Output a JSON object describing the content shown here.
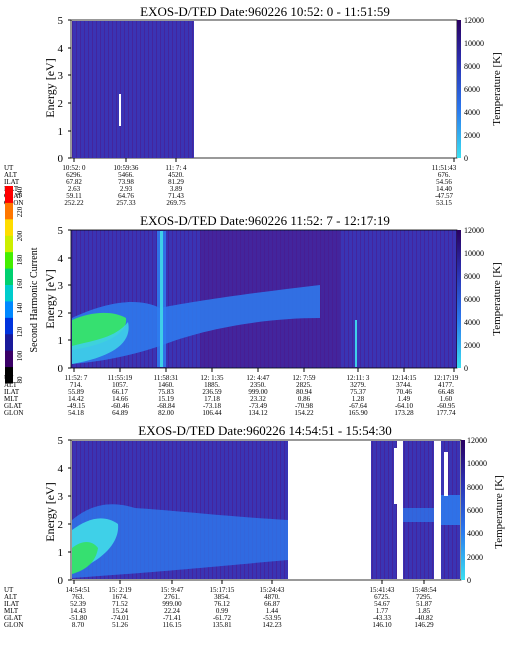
{
  "chart_data": [
    {
      "type": "heatmap",
      "title": "EXOS-D/TED   Date:960226  10:52: 0 - 11:51:59",
      "ylabel": "Energy [eV]",
      "ylim": [
        0,
        5
      ],
      "yticks": [
        "0",
        "1",
        "2",
        "3",
        "4",
        "5"
      ],
      "row_labels": [
        "UT",
        "ALT",
        "ILAT",
        "MLT",
        "GLAT",
        "GLON"
      ],
      "time_range": [
        "10:52: 0",
        "11:51:59"
      ],
      "ticks": [
        {
          "ut": "10:52: 0",
          "values": [
            "6296.",
            "67.82",
            "2.63",
            "59.11",
            "252.22"
          ]
        },
        {
          "ut": "10:59:36",
          "values": [
            "5466.",
            "73.98",
            "2.93",
            "64.76",
            "257.33"
          ]
        },
        {
          "ut": "11: 7: 4",
          "values": [
            "4520.",
            "81.29",
            "3.89",
            "71.43",
            "269.75"
          ]
        },
        {
          "ut": "11:51:43",
          "values": [
            "676.",
            "54.56",
            "14.40",
            "-47.57",
            "53.15"
          ]
        }
      ],
      "colorbar": {
        "label": "Temperature [K]",
        "range": [
          0,
          12000
        ],
        "ticks": [
          "0",
          "2000",
          "4000",
          "6000",
          "8000",
          "10000",
          "12000"
        ]
      }
    },
    {
      "type": "heatmap",
      "title": "EXOS-D/TED   Date:960226  11:52: 7 - 12:17:19",
      "ylabel": "Energy [eV]",
      "ylim": [
        0,
        5
      ],
      "yticks": [
        "0",
        "1",
        "2",
        "3",
        "4",
        "5"
      ],
      "row_labels": [
        "UT",
        "ALT",
        "ILAT",
        "MLT",
        "GLAT",
        "GLON"
      ],
      "time_range": [
        "11:52: 7",
        "12:17:19"
      ],
      "ticks": [
        {
          "ut": "11:52: 7",
          "values": [
            "714.",
            "55.89",
            "14.42",
            "-49.15",
            "54.18"
          ]
        },
        {
          "ut": "11:55:19",
          "values": [
            "1057.",
            "66.17",
            "14.66",
            "-60.46",
            "64.89"
          ]
        },
        {
          "ut": "11:58:31",
          "values": [
            "1460.",
            "75.83",
            "15.19",
            "-68.84",
            "82.00"
          ]
        },
        {
          "ut": "12: 1:35",
          "values": [
            "1885.",
            "236.59",
            "17.18",
            "-73.18",
            "106.44"
          ]
        },
        {
          "ut": "12: 4:47",
          "values": [
            "2350.",
            "999.00",
            "23.32",
            "-73.49",
            "134.12"
          ]
        },
        {
          "ut": "12: 7:59",
          "values": [
            "2825.",
            "80.94",
            "0.86",
            "-70.98",
            "154.22"
          ]
        },
        {
          "ut": "12:11: 3",
          "values": [
            "3279.",
            "75.37",
            "1.28",
            "-67.64",
            "165.90"
          ]
        },
        {
          "ut": "12:14:15",
          "values": [
            "3744.",
            "70.46",
            "1.49",
            "-64.10",
            "173.28"
          ]
        },
        {
          "ut": "12:17:19",
          "values": [
            "4177.",
            "66.48",
            "1.60",
            "-60.95",
            "177.74"
          ]
        }
      ],
      "colorbar": {
        "label": "Temperature [K]",
        "range": [
          0,
          12000
        ],
        "ticks": [
          "0",
          "2000",
          "4000",
          "6000",
          "8000",
          "10000",
          "12000"
        ]
      }
    },
    {
      "type": "heatmap",
      "title": "EXOS-D/TED   Date:960226  14:54:51 - 15:54:30",
      "ylabel": "Energy [eV]",
      "ylim": [
        0,
        5
      ],
      "yticks": [
        "0",
        "1",
        "2",
        "3",
        "4",
        "5"
      ],
      "row_labels": [
        "UT",
        "ALT",
        "ILAT",
        "MLT",
        "GLAT",
        "GLON"
      ],
      "time_range": [
        "14:54:51",
        "15:54:30"
      ],
      "ticks": [
        {
          "ut": "14:54:51",
          "values": [
            "763.",
            "52.39",
            "14.43",
            "-51.80",
            "8.70"
          ]
        },
        {
          "ut": "15: 2:19",
          "values": [
            "1674.",
            "71.52",
            "15.24",
            "-74.01",
            "51.26"
          ]
        },
        {
          "ut": "15: 9:47",
          "values": [
            "2761.",
            "999.00",
            "22.24",
            "-71.41",
            "116.15"
          ]
        },
        {
          "ut": "15:17:15",
          "values": [
            "3854.",
            "76.12",
            "0.99",
            "-61.72",
            "135.81"
          ]
        },
        {
          "ut": "15:24:43",
          "values": [
            "4870.",
            "66.87",
            "1.44",
            "-53.95",
            "142.23"
          ]
        },
        {
          "ut": "15:41:43",
          "values": [
            "6725.",
            "54.67",
            "1.77",
            "-43.33",
            "146.10"
          ]
        },
        {
          "ut": "15:48:54",
          "values": [
            "7295.",
            "51.87",
            "1.85",
            "-40.82",
            "146.29"
          ]
        }
      ],
      "colorbar": {
        "label": "Temperature [K]",
        "range": [
          0,
          12000
        ],
        "ticks": [
          "0",
          "2000",
          "4000",
          "6000",
          "8000",
          "10000",
          "12000"
        ]
      }
    }
  ],
  "side_colorbar": {
    "label": "Second Harmonic Current",
    "range": [
      80,
      240
    ],
    "ticks": [
      "80",
      "100",
      "120",
      "140",
      "160",
      "180",
      "200",
      "220",
      "240"
    ],
    "colors": [
      "#000000",
      "#3a0066",
      "#1a1a9a",
      "#0033dd",
      "#0088ff",
      "#00cccc",
      "#00d070",
      "#44ee00",
      "#ccee00",
      "#ffdd00",
      "#ff7700",
      "#ff0000"
    ]
  },
  "colors": {
    "background_field": "#3a34b4",
    "deep_purple": "#4a1a8a",
    "light_blue": "#2e7cf0",
    "cyan": "#3fd0e8",
    "green": "#36e070"
  }
}
